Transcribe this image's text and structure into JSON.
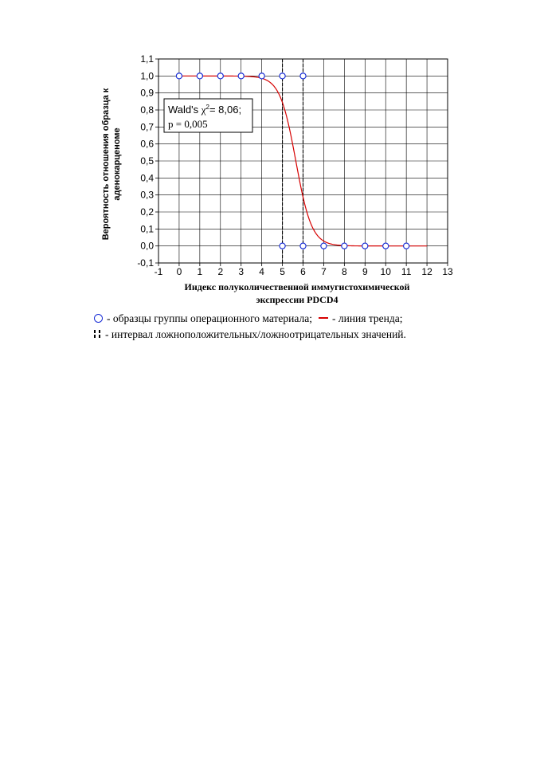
{
  "chart_data": {
    "type": "scatter",
    "xlabel": [
      "Индекс полуколичественной иммугистохимической",
      "экспрессии PDCD4"
    ],
    "ylabel": [
      "Вероятность отношения образца к",
      "аденокарценоме"
    ],
    "xlim": [
      -1,
      13
    ],
    "ylim": [
      -0.1,
      1.1
    ],
    "x_ticks": [
      -1,
      0,
      1,
      2,
      3,
      4,
      5,
      6,
      7,
      8,
      9,
      10,
      11,
      12,
      13
    ],
    "y_ticks": [
      -0.1,
      0.0,
      0.1,
      0.2,
      0.3,
      0.4,
      0.5,
      0.6,
      0.7,
      0.8,
      0.9,
      1.0,
      1.1
    ],
    "x_tick_labels": [
      "-1",
      "0",
      "1",
      "2",
      "3",
      "4",
      "5",
      "6",
      "7",
      "8",
      "9",
      "10",
      "11",
      "12",
      "13"
    ],
    "y_tick_labels": [
      "-0,1",
      "0,0",
      "0,1",
      "0,2",
      "0,3",
      "0,4",
      "0,5",
      "0,6",
      "0,7",
      "0,8",
      "0,9",
      "1,0",
      "1,1"
    ],
    "grid": true,
    "series": [
      {
        "kind": "points",
        "color": "#1a2fd6",
        "x": [
          0,
          1,
          2,
          3,
          4,
          5,
          6,
          5,
          6,
          7,
          8,
          9,
          10,
          11
        ],
        "y": [
          1,
          1,
          1,
          1,
          1,
          1,
          1,
          0,
          0,
          0,
          0,
          0,
          0,
          0
        ]
      },
      {
        "kind": "logistic-trend",
        "color": "#d60000",
        "x_range": [
          0,
          12
        ],
        "midpoint": 5.65,
        "slope": 2.6
      }
    ],
    "vertical_lines": [
      {
        "x": 5,
        "style": "dashed",
        "color": "#000000"
      },
      {
        "x": 6,
        "style": "dashed",
        "color": "#000000"
      }
    ],
    "annotation": {
      "line1_prefix": "Wald's ",
      "line1_chi": "χ",
      "line1_sup": "2",
      "line1_suffix": "= 8,06;",
      "line2": "p = 0,005"
    }
  },
  "legend": {
    "points_label": "- образцы группы операционного материала;",
    "trend_label": "- линия тренда;",
    "interval_label": "- интервал ложноположительных/ложноотрицательных значений."
  }
}
